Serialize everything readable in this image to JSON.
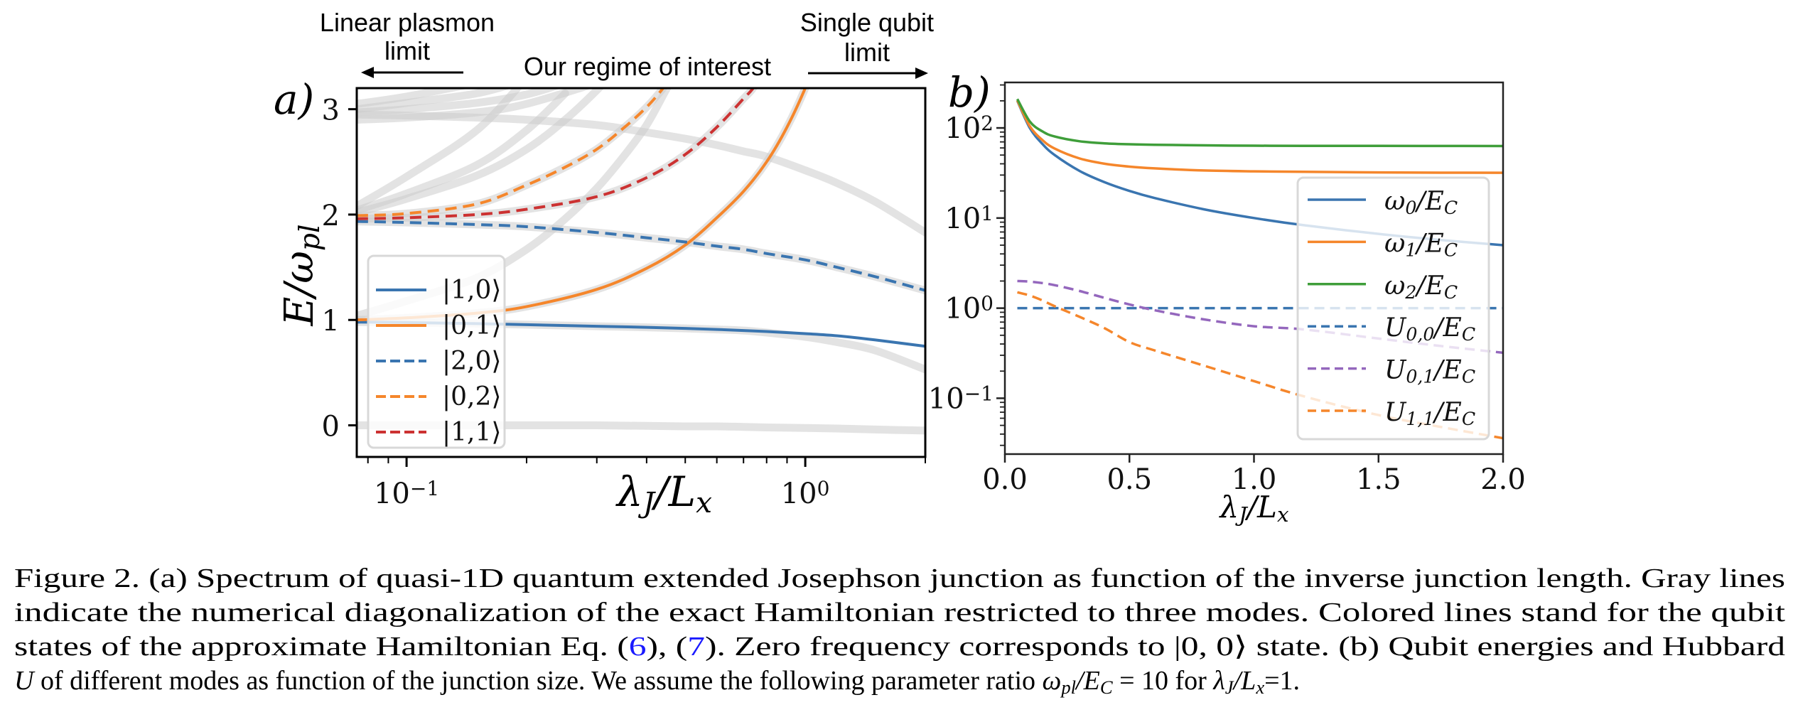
{
  "annotations": {
    "linear_plasmon_line1": "Linear plasmon",
    "linear_plasmon_line2": "limit",
    "regime": "Our regime of interest",
    "single_qubit_line1": "Single qubit",
    "single_qubit_line2": "limit"
  },
  "chart_data": [
    {
      "panel_label": "a)",
      "type": "line",
      "xlabel": "λ_J/L_x",
      "ylabel": "E/ω_{pl}",
      "xscale": "log",
      "yscale": "linear",
      "xlim": [
        0.075,
        2.0
      ],
      "ylim": [
        -0.3,
        3.2
      ],
      "xticks": [
        {
          "value": 0.1,
          "label": "10^{−1}"
        },
        {
          "value": 1.0,
          "label": "10^0"
        }
      ],
      "yticks": [
        {
          "value": 0,
          "label": "0"
        },
        {
          "value": 1,
          "label": "1"
        },
        {
          "value": 2,
          "label": "2"
        },
        {
          "value": 3,
          "label": "3"
        }
      ],
      "grid": false,
      "legend_position": "lower-left",
      "gray_lines_color": "#cccccc",
      "gray_lines": [
        {
          "x": [
            0.075,
            0.1,
            0.15,
            0.2,
            0.3,
            0.4,
            0.5,
            0.6,
            0.7,
            0.8,
            1.0,
            1.2,
            1.5,
            2.0
          ],
          "y": [
            0,
            0,
            0,
            0,
            0,
            -0.005,
            -0.01,
            -0.01,
            -0.015,
            -0.02,
            -0.025,
            -0.03,
            -0.04,
            -0.05
          ]
        },
        {
          "x": [
            0.075,
            0.1,
            0.15,
            0.2,
            0.3,
            0.4,
            0.5,
            0.6,
            0.7,
            0.8,
            1.0,
            1.2,
            1.5,
            2.0
          ],
          "y": [
            0.98,
            0.975,
            0.965,
            0.955,
            0.94,
            0.93,
            0.92,
            0.91,
            0.9,
            0.88,
            0.84,
            0.79,
            0.71,
            0.53
          ]
        },
        {
          "x": [
            0.075,
            0.1,
            0.15,
            0.2,
            0.3,
            0.4,
            0.5,
            0.6,
            0.7,
            0.8,
            0.9,
            1.0,
            1.1
          ],
          "y": [
            1.0,
            1.02,
            1.065,
            1.127,
            1.29,
            1.49,
            1.71,
            1.97,
            2.22,
            2.5,
            2.83,
            3.2,
            3.6
          ]
        },
        {
          "x": [
            0.075,
            0.1,
            0.15,
            0.2,
            0.3,
            0.4,
            0.5,
            0.6,
            0.7,
            0.8,
            1.0,
            1.2,
            1.5,
            2.0
          ],
          "y": [
            1.935,
            1.925,
            1.905,
            1.885,
            1.83,
            1.78,
            1.74,
            1.7,
            1.67,
            1.63,
            1.57,
            1.5,
            1.41,
            1.28
          ]
        },
        {
          "x": [
            0.075,
            0.1,
            0.15,
            0.2,
            0.25,
            0.3,
            0.35,
            0.4,
            0.44,
            0.48
          ],
          "y": [
            1.99,
            2.01,
            2.1,
            2.28,
            2.45,
            2.62,
            2.82,
            3.02,
            3.2,
            3.4
          ]
        },
        {
          "x": [
            0.075,
            0.1,
            0.15,
            0.2,
            0.3,
            0.4,
            0.5,
            0.6,
            0.7,
            0.74,
            0.8
          ],
          "y": [
            1.96,
            1.97,
            2.0,
            2.05,
            2.17,
            2.35,
            2.57,
            2.83,
            3.1,
            3.2,
            3.4
          ]
        },
        {
          "x": [
            0.075,
            0.1,
            0.15,
            0.2,
            0.25,
            0.3,
            0.35,
            0.4,
            0.45,
            0.5
          ],
          "y": [
            1.04,
            1.18,
            1.4,
            1.67,
            1.96,
            2.25,
            2.55,
            2.85,
            3.2,
            3.5
          ]
        },
        {
          "x": [
            0.075,
            0.1,
            0.15,
            0.2,
            0.25,
            0.3,
            0.35
          ],
          "y": [
            2.02,
            2.15,
            2.37,
            2.62,
            2.9,
            3.18,
            3.45
          ]
        },
        {
          "x": [
            0.075,
            0.1,
            0.15,
            0.2,
            0.25
          ],
          "y": [
            2.04,
            2.2,
            2.47,
            2.8,
            3.15
          ]
        },
        {
          "x": [
            0.075,
            0.1,
            0.15,
            0.2
          ],
          "y": [
            2.08,
            2.36,
            2.8,
            3.3
          ]
        },
        {
          "x": [
            0.075,
            0.1,
            0.15,
            0.2,
            0.3,
            0.4,
            0.5,
            0.6,
            0.7,
            0.8,
            1.0,
            1.2,
            1.5,
            2.0
          ],
          "y": [
            2.95,
            2.94,
            2.92,
            2.9,
            2.85,
            2.78,
            2.72,
            2.66,
            2.6,
            2.55,
            2.42,
            2.3,
            2.12,
            1.83
          ]
        },
        {
          "x": [
            0.075,
            0.1,
            0.15,
            0.2,
            0.25
          ],
          "y": [
            2.97,
            3.0,
            3.06,
            3.14,
            3.25
          ]
        },
        {
          "x": [
            0.075,
            0.1,
            0.15,
            0.2
          ],
          "y": [
            3.0,
            3.06,
            3.15,
            3.28
          ]
        },
        {
          "x": [
            0.075,
            0.1,
            0.15
          ],
          "y": [
            3.05,
            3.12,
            3.25
          ]
        },
        {
          "x": [
            0.075,
            0.1,
            0.15,
            0.2,
            0.3
          ],
          "y": [
            2.9,
            2.92,
            2.97,
            3.05,
            3.25
          ]
        }
      ],
      "series": [
        {
          "name": "|1,0⟩",
          "color": "#3a75b0",
          "dash": false,
          "x": [
            0.075,
            0.1,
            0.15,
            0.2,
            0.3,
            0.4,
            0.5,
            0.6,
            0.7,
            0.8,
            1.0,
            1.2,
            1.5,
            2.0
          ],
          "y": [
            0.98,
            0.975,
            0.965,
            0.955,
            0.94,
            0.93,
            0.92,
            0.91,
            0.9,
            0.89,
            0.87,
            0.85,
            0.81,
            0.75
          ]
        },
        {
          "name": "|0,1⟩",
          "color": "#f5862b",
          "dash": false,
          "x": [
            0.075,
            0.1,
            0.15,
            0.2,
            0.3,
            0.4,
            0.5,
            0.6,
            0.7,
            0.8,
            0.9,
            1.0,
            1.1
          ],
          "y": [
            1.0,
            1.02,
            1.065,
            1.127,
            1.29,
            1.49,
            1.71,
            1.97,
            2.22,
            2.5,
            2.83,
            3.2,
            3.6
          ]
        },
        {
          "name": "|2,0⟩",
          "color": "#3a75b0",
          "dash": true,
          "x": [
            0.075,
            0.1,
            0.15,
            0.2,
            0.3,
            0.4,
            0.5,
            0.6,
            0.7,
            0.8,
            1.0,
            1.2,
            1.5,
            2.0
          ],
          "y": [
            1.935,
            1.925,
            1.905,
            1.885,
            1.83,
            1.78,
            1.74,
            1.7,
            1.67,
            1.63,
            1.57,
            1.5,
            1.41,
            1.28
          ]
        },
        {
          "name": "|0,2⟩",
          "color": "#f5862b",
          "dash": true,
          "x": [
            0.075,
            0.1,
            0.15,
            0.2,
            0.25,
            0.3,
            0.35,
            0.4,
            0.44,
            0.48
          ],
          "y": [
            1.99,
            2.01,
            2.1,
            2.28,
            2.45,
            2.62,
            2.82,
            3.02,
            3.2,
            3.4
          ]
        },
        {
          "name": "|1,1⟩",
          "color": "#cc3232",
          "dash": true,
          "x": [
            0.075,
            0.1,
            0.15,
            0.2,
            0.3,
            0.4,
            0.5,
            0.6,
            0.7,
            0.74,
            0.8
          ],
          "y": [
            1.96,
            1.97,
            2.0,
            2.05,
            2.17,
            2.35,
            2.57,
            2.83,
            3.1,
            3.2,
            3.4
          ]
        }
      ]
    },
    {
      "panel_label": "b)",
      "type": "line",
      "xlabel": "λ_J/L_x",
      "ylabel": "",
      "xscale": "linear",
      "yscale": "log",
      "xlim": [
        0.0,
        2.0
      ],
      "ylim": [
        0.024,
        320
      ],
      "xticks": [
        {
          "value": 0.0,
          "label": "0.0"
        },
        {
          "value": 0.5,
          "label": "0.5"
        },
        {
          "value": 1.0,
          "label": "1.0"
        },
        {
          "value": 1.5,
          "label": "1.5"
        },
        {
          "value": 2.0,
          "label": "2.0"
        }
      ],
      "yticks": [
        {
          "value": 0.1,
          "label": "10^{−1}"
        },
        {
          "value": 1,
          "label": "10^0"
        },
        {
          "value": 10,
          "label": "10^1"
        },
        {
          "value": 100,
          "label": "10^2"
        }
      ],
      "grid": false,
      "legend_position": "right",
      "series": [
        {
          "name": "ω_0/E_C",
          "color": "#3a75b0",
          "dash": false,
          "x": [
            0.05,
            0.1,
            0.15,
            0.2,
            0.3,
            0.4,
            0.5,
            0.6,
            0.8,
            1.0,
            1.2,
            1.5,
            1.75,
            2.0
          ],
          "y": [
            200,
            100,
            66.7,
            50,
            33.3,
            25,
            20,
            16.7,
            12.5,
            10,
            8.33,
            6.67,
            5.71,
            5
          ]
        },
        {
          "name": "ω_1/E_C",
          "color": "#f5862b",
          "dash": false,
          "x": [
            0.05,
            0.1,
            0.15,
            0.2,
            0.3,
            0.4,
            0.5,
            0.6,
            0.8,
            1.0,
            1.2,
            1.5,
            1.75,
            2.0
          ],
          "y": [
            202.5,
            104.8,
            73.6,
            59.0,
            45.8,
            40.1,
            37.2,
            35.6,
            33.7,
            33.0,
            32.6,
            32.1,
            31.9,
            31.8
          ]
        },
        {
          "name": "ω_2/E_C",
          "color": "#3f9e3a",
          "dash": false,
          "x": [
            0.05,
            0.1,
            0.15,
            0.2,
            0.3,
            0.4,
            0.5,
            0.6,
            0.8,
            1.0,
            1.2,
            1.5,
            1.75,
            2.0
          ],
          "y": [
            209.6,
            118.1,
            91.7,
            80.3,
            71.1,
            67.5,
            65.9,
            65.1,
            64.1,
            63.6,
            63.3,
            63.2,
            63.1,
            63.0
          ]
        },
        {
          "name": "U_{0,0}/E_C",
          "color": "#3a75b0",
          "dash": true,
          "x": [
            0.05,
            2.0
          ],
          "y": [
            1,
            1
          ]
        },
        {
          "name": "U_{0,1}/E_C",
          "color": "#9467bd",
          "dash": true,
          "x": [
            0.05,
            0.1,
            0.15,
            0.2,
            0.3,
            0.4,
            0.5,
            0.6,
            0.8,
            1.0,
            1.2,
            1.5,
            1.75,
            2.0
          ],
          "y": [
            2.0,
            1.97,
            1.9,
            1.8,
            1.55,
            1.3,
            1.1,
            0.95,
            0.75,
            0.63,
            0.58,
            0.46,
            0.38,
            0.32
          ]
        },
        {
          "name": "U_{1,1}/E_C",
          "color": "#f5862b",
          "dash": true,
          "x": [
            0.05,
            0.1,
            0.15,
            0.2,
            0.3,
            0.4,
            0.5,
            0.6,
            0.8,
            1.0,
            1.2,
            1.5,
            1.75,
            2.0
          ],
          "y": [
            1.5,
            1.38,
            1.22,
            1.05,
            0.8,
            0.6,
            0.42,
            0.34,
            0.23,
            0.155,
            0.105,
            0.065,
            0.048,
            0.036
          ]
        }
      ]
    }
  ],
  "caption": {
    "lines": [
      [
        {
          "t": "Figure 2.  (a) Spectrum of quasi-1D quantum extended Josephson junction as function of the inverse junction length.  Gray lines",
          "s": "normal"
        }
      ],
      [
        {
          "t": "indicate the numerical diagonalization of the exact Hamiltonian restricted to three modes.  Colored lines stand for the qubit",
          "s": "normal"
        }
      ],
      [
        {
          "t": "states of the approximate Hamiltonian Eq. (",
          "s": "normal"
        },
        {
          "t": "6",
          "s": "ref"
        },
        {
          "t": "), (",
          "s": "normal"
        },
        {
          "t": "7",
          "s": "ref"
        },
        {
          "t": ").  Zero frequency corresponds to |0, 0⟩ state.  (b) Qubit energies and Hubbard",
          "s": "normal"
        }
      ],
      [
        {
          "t": "U",
          "s": "italic"
        },
        {
          "t": " of different modes as function of the junction size.  We assume the following parameter ratio ",
          "s": "normal"
        },
        {
          "t": "ω_{pl}/E_C",
          "s": "math"
        },
        {
          "t": " = 10 for ",
          "s": "normal"
        },
        {
          "t": "λ_J/L_x",
          "s": "math"
        },
        {
          "t": "=1.",
          "s": "normal"
        }
      ]
    ],
    "ref_color": "#1a1aff"
  }
}
